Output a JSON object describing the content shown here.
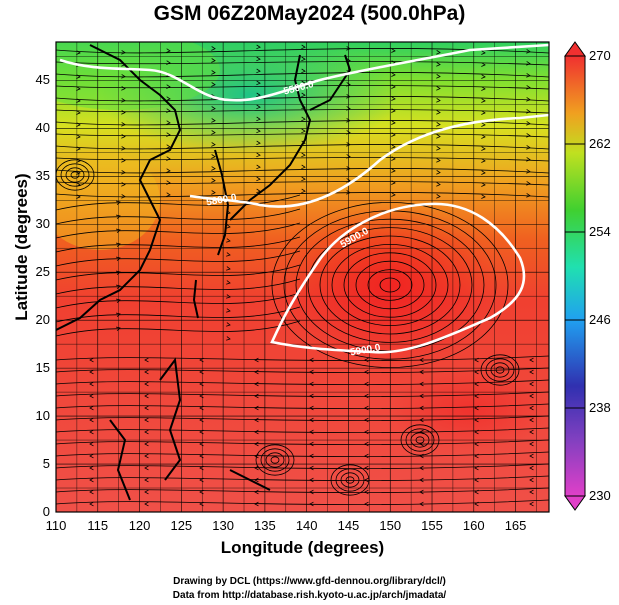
{
  "title": "GSM 06Z20May2024 (500.0hPa)",
  "x_axis": {
    "label": "Longitude (degrees)",
    "ticks": [
      "110",
      "115",
      "120",
      "125",
      "130",
      "135",
      "140",
      "145",
      "150",
      "155",
      "160",
      "165"
    ],
    "range": [
      110,
      169
    ]
  },
  "y_axis": {
    "label": "Latitude  (degrees)",
    "ticks": [
      "0",
      "5",
      "10",
      "15",
      "20",
      "25",
      "30",
      "35",
      "40",
      "45"
    ],
    "range": [
      0,
      49
    ]
  },
  "colorbar": {
    "ticks": [
      "270",
      "262",
      "254",
      "246",
      "238",
      "230"
    ],
    "range": [
      230,
      270
    ],
    "colors": [
      "#e040c8",
      "#4040c0",
      "#2090f0",
      "#20d8c0",
      "#30d030",
      "#d0e020",
      "#f09018",
      "#f03030"
    ]
  },
  "contours": [
    {
      "label": "5900.0"
    },
    {
      "label": "5800.0"
    },
    {
      "label": "5500.0"
    }
  ],
  "credits": {
    "line1": "Drawing by DCL (https://www.gfd-dennou.org/library/dcl/)",
    "line2": "Data from http://database.rish.kyoto-u.ac.jp/arch/jmadata/"
  }
}
